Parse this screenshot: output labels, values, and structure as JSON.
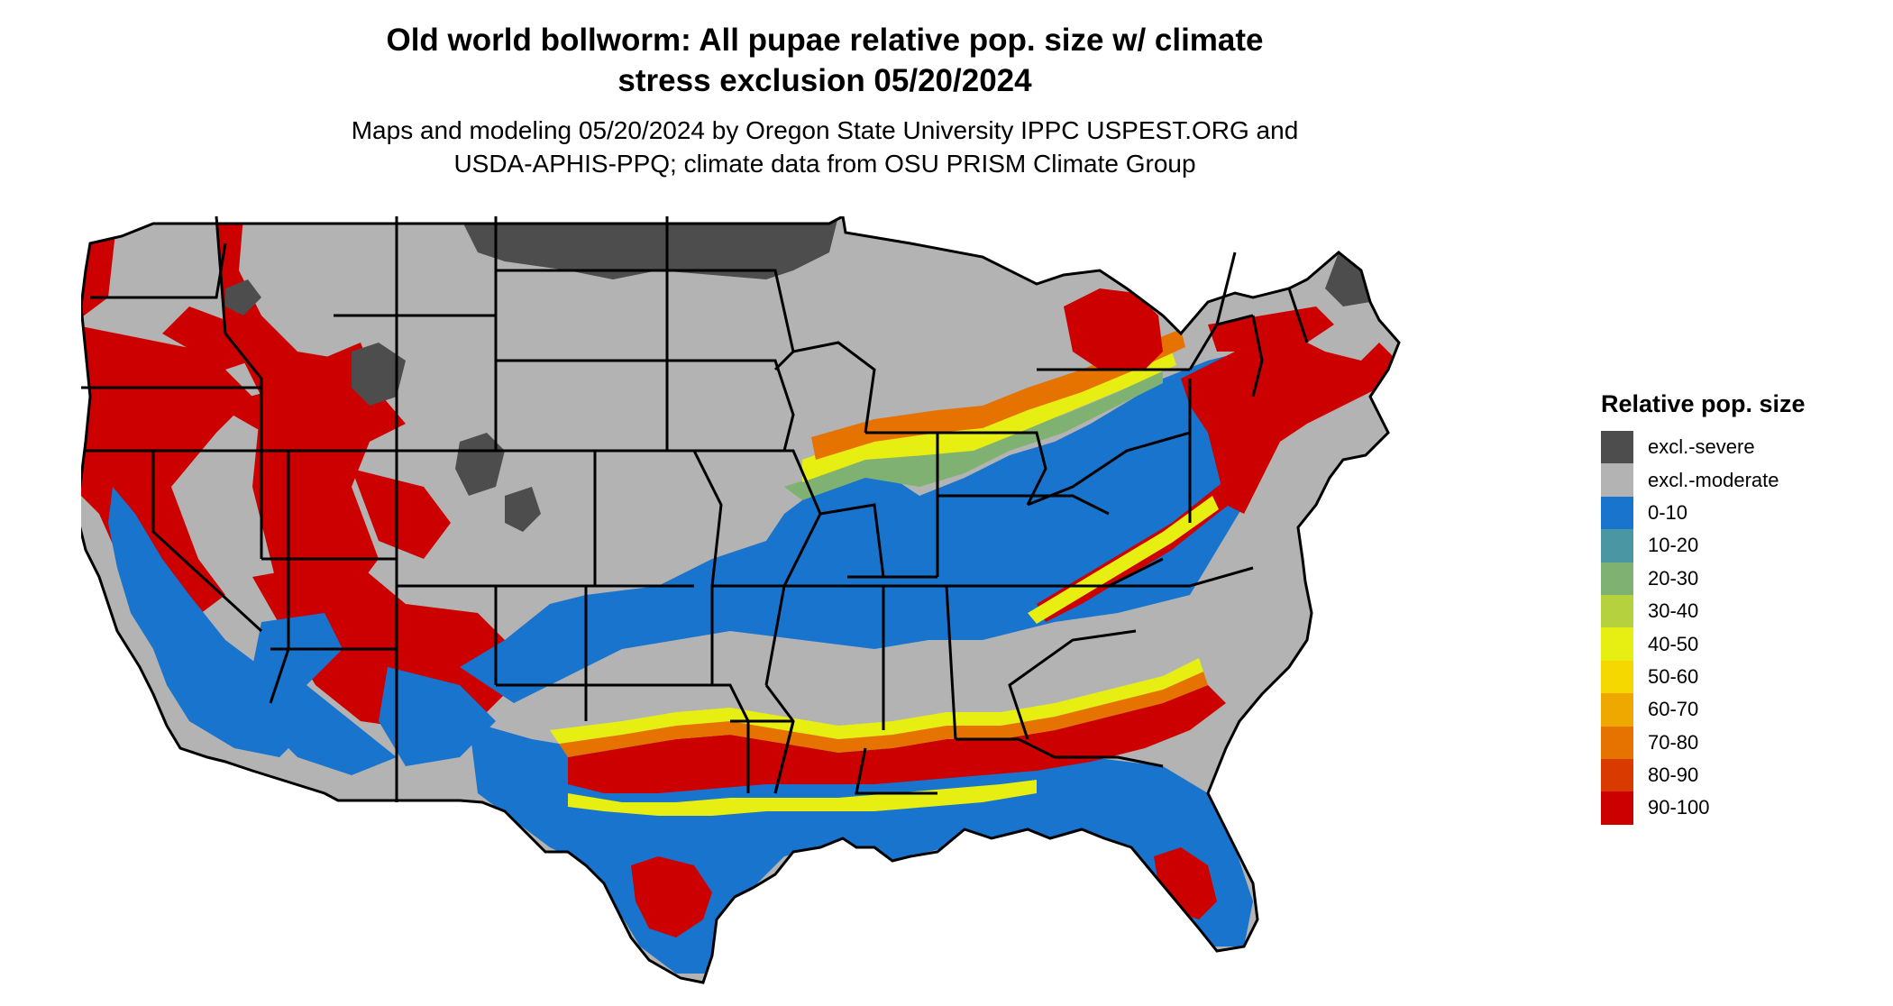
{
  "title": {
    "line1": "Old world bollworm: All pupae relative pop. size w/ climate",
    "line2": "stress exclusion 05/20/2024"
  },
  "subtitle": {
    "line1": "Maps and modeling 05/20/2024 by Oregon State University IPPC USPEST.ORG and",
    "line2": "USDA-APHIS-PPQ; climate data from OSU PRISM Climate Group"
  },
  "legend": {
    "title": "Relative pop. size",
    "items": [
      {
        "label": "excl.-severe",
        "color": "#4d4d4d"
      },
      {
        "label": "excl.-moderate",
        "color": "#b3b3b3"
      },
      {
        "label": "0-10",
        "color": "#1874cd"
      },
      {
        "label": "10-20",
        "color": "#4a96a3"
      },
      {
        "label": "20-30",
        "color": "#7fb173"
      },
      {
        "label": "30-40",
        "color": "#b5d13e"
      },
      {
        "label": "40-50",
        "color": "#e6ee12"
      },
      {
        "label": "50-60",
        "color": "#f5d800"
      },
      {
        "label": "60-70",
        "color": "#efa800"
      },
      {
        "label": "70-80",
        "color": "#e67300"
      },
      {
        "label": "80-90",
        "color": "#d93a00"
      },
      {
        "label": "90-100",
        "color": "#cd0000"
      }
    ]
  }
}
